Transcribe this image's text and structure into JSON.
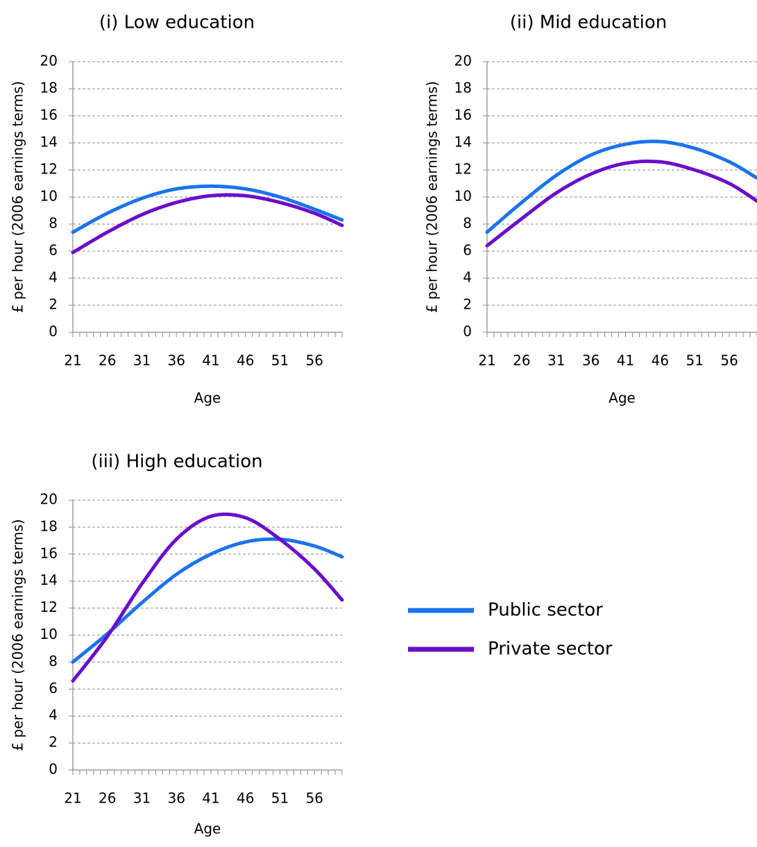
{
  "legend": [
    {
      "name": "Public sector",
      "color": "#1a73f0"
    },
    {
      "name": "Private sector",
      "color": "#6a0dcc"
    }
  ],
  "chart_data": [
    {
      "type": "line",
      "title": "(i) Low education",
      "xlabel": "Age",
      "ylabel": "£ per hour (2006 earnings terms)",
      "xlim": [
        21,
        60
      ],
      "ylim": [
        0,
        20
      ],
      "x_ticks": [
        21,
        26,
        31,
        36,
        41,
        46,
        51,
        56
      ],
      "y_ticks": [
        0,
        2,
        4,
        6,
        8,
        10,
        12,
        14,
        16,
        18,
        20
      ],
      "grid": "horizontal-dashed",
      "x": [
        21,
        26,
        31,
        36,
        41,
        46,
        51,
        56,
        60
      ],
      "series": [
        {
          "name": "Public sector",
          "values": [
            7.4,
            8.8,
            9.9,
            10.6,
            10.8,
            10.6,
            10.0,
            9.1,
            8.3
          ]
        },
        {
          "name": "Private sector",
          "values": [
            5.9,
            7.4,
            8.7,
            9.6,
            10.1,
            10.1,
            9.6,
            8.8,
            7.9
          ]
        }
      ]
    },
    {
      "type": "line",
      "title": "(ii) Mid education",
      "xlabel": "Age",
      "ylabel": "£ per hour (2006 earnings terms)",
      "xlim": [
        21,
        60
      ],
      "ylim": [
        0,
        20
      ],
      "x_ticks": [
        21,
        26,
        31,
        36,
        41,
        46,
        51,
        56
      ],
      "y_ticks": [
        0,
        2,
        4,
        6,
        8,
        10,
        12,
        14,
        16,
        18,
        20
      ],
      "grid": "horizontal-dashed",
      "x": [
        21,
        26,
        31,
        36,
        41,
        46,
        51,
        56,
        60
      ],
      "series": [
        {
          "name": "Public sector",
          "values": [
            7.4,
            9.6,
            11.6,
            13.1,
            13.9,
            14.1,
            13.6,
            12.6,
            11.4
          ]
        },
        {
          "name": "Private sector",
          "values": [
            6.4,
            8.4,
            10.3,
            11.7,
            12.5,
            12.6,
            12.0,
            11.0,
            9.7
          ]
        }
      ]
    },
    {
      "type": "line",
      "title": "(iii) High education",
      "xlabel": "Age",
      "ylabel": "£ per hour (2006 earnings terms)",
      "xlim": [
        21,
        60
      ],
      "ylim": [
        0,
        20
      ],
      "x_ticks": [
        21,
        26,
        31,
        36,
        41,
        46,
        51,
        56
      ],
      "y_ticks": [
        0,
        2,
        4,
        6,
        8,
        10,
        12,
        14,
        16,
        18,
        20
      ],
      "grid": "horizontal-dashed",
      "x": [
        21,
        26,
        31,
        36,
        41,
        46,
        51,
        56,
        60
      ],
      "series": [
        {
          "name": "Public sector",
          "values": [
            8.0,
            10.1,
            12.4,
            14.5,
            16.0,
            16.9,
            17.1,
            16.6,
            15.8
          ]
        },
        {
          "name": "Private sector",
          "values": [
            6.6,
            9.9,
            13.8,
            17.1,
            18.8,
            18.7,
            17.1,
            14.9,
            12.6
          ]
        }
      ]
    }
  ]
}
